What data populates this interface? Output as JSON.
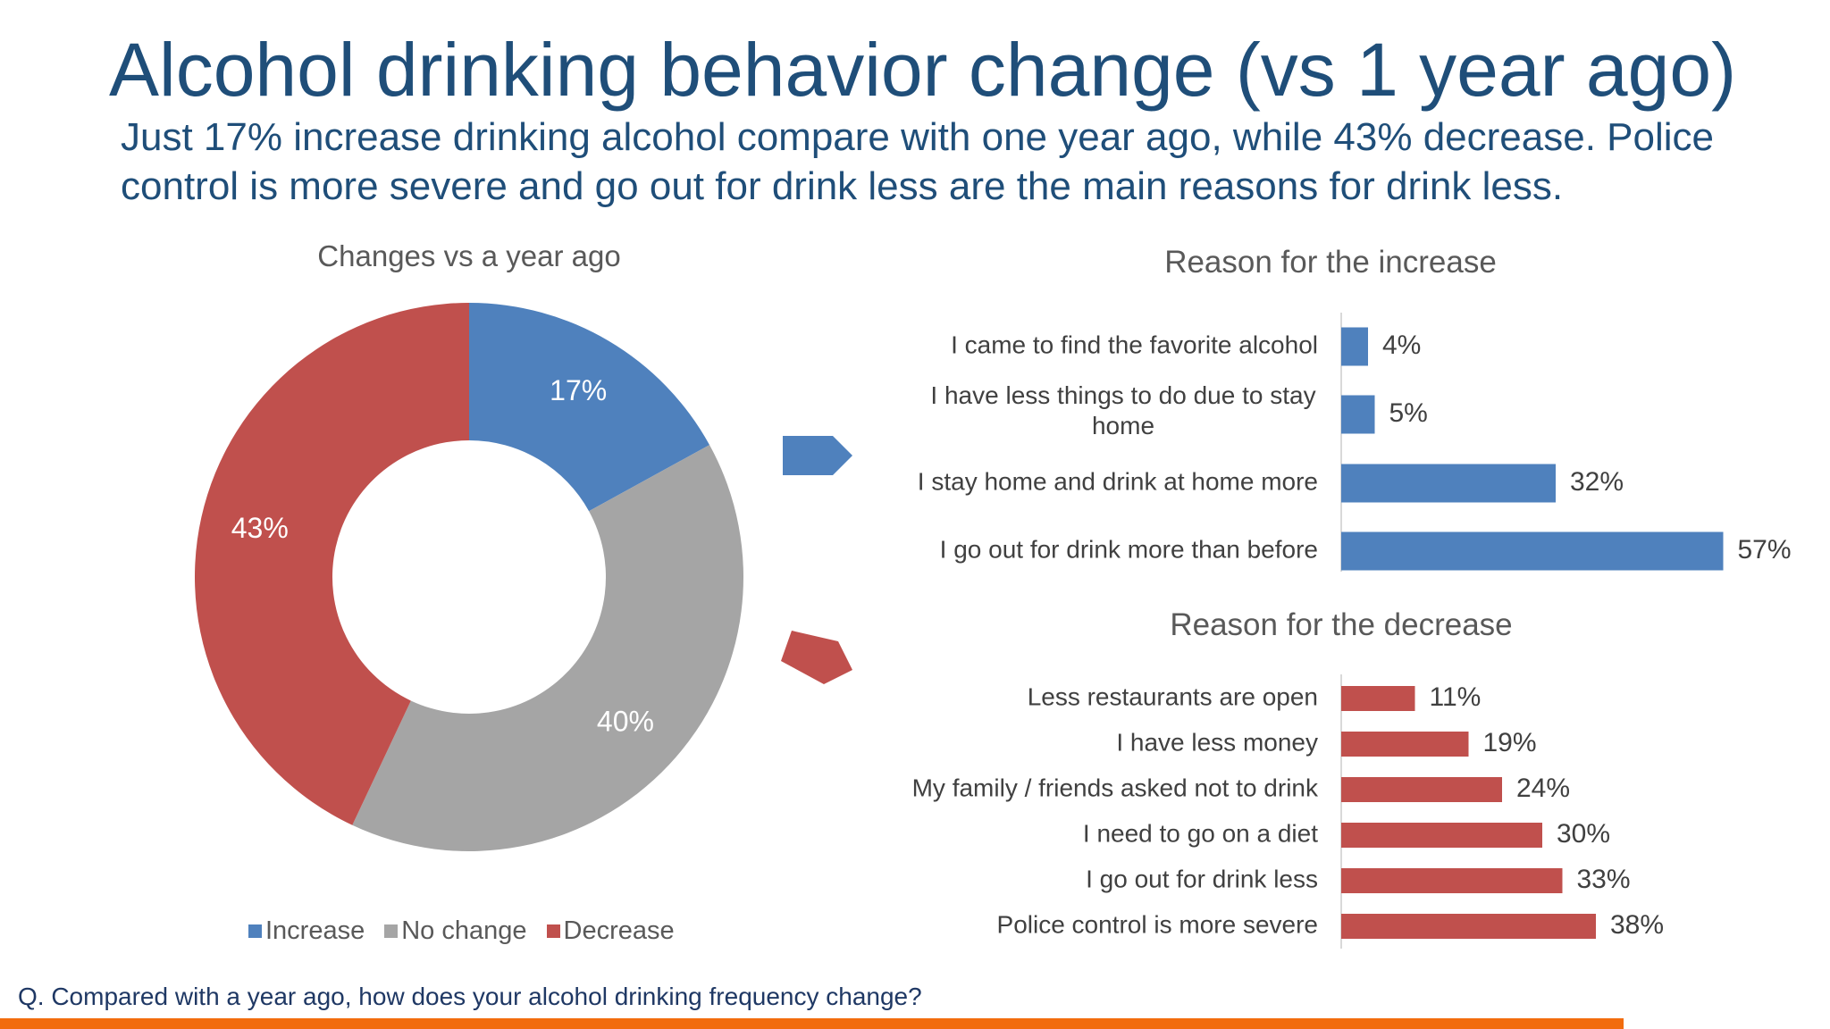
{
  "title": "Alcohol drinking behavior change (vs 1 year ago)",
  "subtitle": "Just 17% increase drinking alcohol compare with one year ago, while 43% decrease. Police control is more severe and go out for drink less are the main reasons for drink less.",
  "footnote": "Q. Compared with a year ago, how does your alcohol drinking frequency change?",
  "colors": {
    "increase": "#4f81bd",
    "no_change": "#a5a5a5",
    "decrease": "#c0504d",
    "accent_line": "#f26c0d",
    "title": "#1f4e79"
  },
  "chart_data": [
    {
      "type": "pie",
      "title": "Changes vs a year ago",
      "labels": [
        "Increase",
        "No change",
        "Decrease"
      ],
      "values": [
        17,
        40,
        43
      ],
      "value_labels": [
        "17%",
        "40%",
        "43%"
      ],
      "colors": [
        "#4f81bd",
        "#a5a5a5",
        "#c0504d"
      ],
      "legend": "bottom"
    },
    {
      "type": "bar",
      "orientation": "horizontal",
      "title": "Reason for the increase",
      "categories": [
        "I came to find the favorite alcohol",
        "I have less things to do due to stay home",
        "I stay home and drink at home more",
        "I go out for drink more than before"
      ],
      "values": [
        4,
        5,
        32,
        57
      ],
      "value_labels": [
        "4%",
        "5%",
        "32%",
        "57%"
      ],
      "color": "#4f81bd"
    },
    {
      "type": "bar",
      "orientation": "horizontal",
      "title": "Reason for the decrease",
      "categories": [
        "Less restaurants are open",
        "I have less money",
        "My family / friends asked not to drink",
        "I need to go on a diet",
        "I go out for drink less",
        "Police control is more severe"
      ],
      "values": [
        11,
        19,
        24,
        30,
        33,
        38
      ],
      "value_labels": [
        "11%",
        "19%",
        "24%",
        "30%",
        "33%",
        "38%"
      ],
      "color": "#c0504d"
    }
  ]
}
